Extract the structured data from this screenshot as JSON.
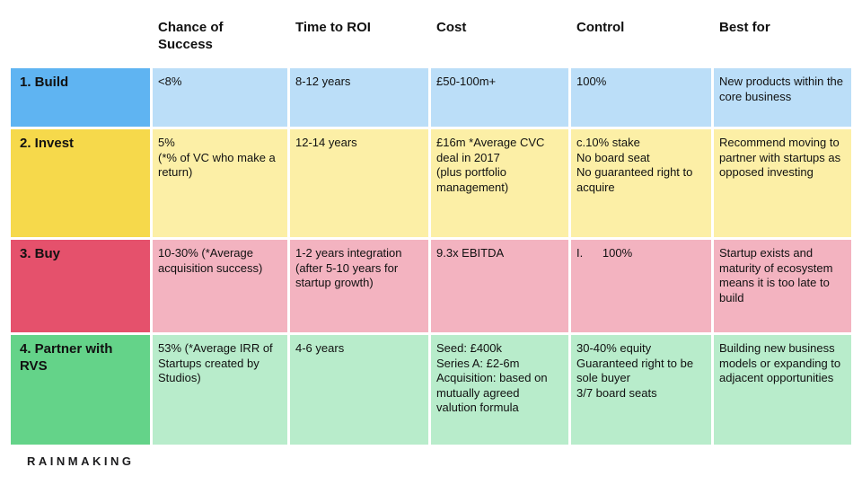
{
  "slide": {
    "background": "#FFFFFF",
    "text_color": "#111111",
    "columns": [
      {
        "label": "Chance of Success"
      },
      {
        "label": "Time to ROI"
      },
      {
        "label": "Cost"
      },
      {
        "label": "Control"
      },
      {
        "label": "Best for"
      }
    ],
    "rows": [
      {
        "label": "1. Build",
        "label_bg": "#5FB4F2",
        "cell_bg": "#BBDEF8",
        "cells": [
          "<8%",
          "8-12 years",
          "£50-100m+",
          "100%",
          "New products within the core business"
        ]
      },
      {
        "label": "2. Invest",
        "label_bg": "#F6D94B",
        "cell_bg": "#FCEFA6",
        "cells": [
          "5%\n(*% of VC who make a return)",
          "12-14 years",
          "£16m *Average CVC deal in 2017\n(plus portfolio management)",
          "c.10% stake\nNo board seat\nNo guaranteed right to acquire",
          "Recommend moving to partner with startups as opposed investing"
        ]
      },
      {
        "label": "3. Buy",
        "label_bg": "#E5516C",
        "cell_bg": "#F3B3C0",
        "cells": [
          "10-30% (*Average acquisition success)",
          "1-2 years integration (after 5-10 years for startup growth)",
          "9.3x EBITDA",
          "I.      100%",
          "Startup exists and maturity of ecosystem means it is too late to build"
        ]
      },
      {
        "label": "4. Partner with RVS",
        "label_bg": "#64D389",
        "cell_bg": "#B8ECCB",
        "cells": [
          "53% (*Average IRR of Startups created by Studios)",
          "4-6 years",
          "Seed: £400k\nSeries A: £2-6m\nAcquisition: based on mutually agreed valution formula",
          "30-40% equity\nGuaranteed right to be sole buyer\n3/7 board seats",
          "Building new business models or expanding to  adjacent opportunities"
        ]
      }
    ],
    "brand": "RAINMAKING"
  }
}
